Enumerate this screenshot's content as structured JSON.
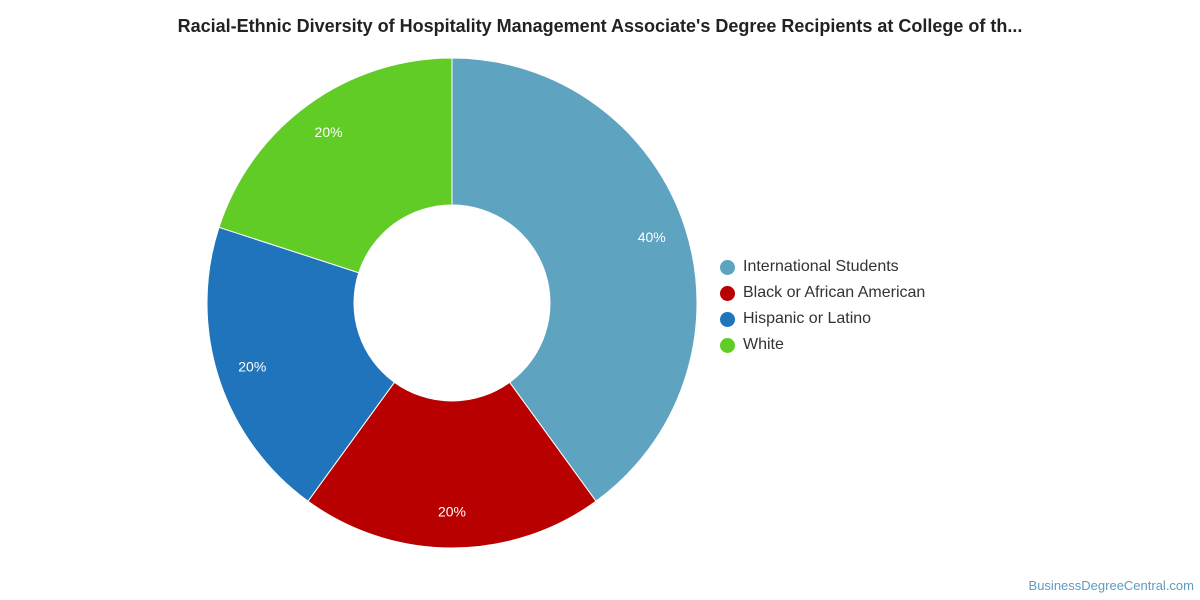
{
  "chart_data": {
    "type": "pie",
    "donut": true,
    "title": "Racial-Ethnic Diversity of Hospitality Management Associate's Degree Recipients at College of th...",
    "legend_position": "right",
    "slices": [
      {
        "label": "International Students",
        "value": 40,
        "display": "40%",
        "color": "#5ea3c0"
      },
      {
        "label": "Black or African American",
        "value": 20,
        "display": "20%",
        "color": "#b80000"
      },
      {
        "label": "Hispanic or Latino",
        "value": 20,
        "display": "20%",
        "color": "#1f74bb"
      },
      {
        "label": "White",
        "value": 20,
        "display": "20%",
        "color": "#62cc26"
      }
    ]
  },
  "watermark": "BusinessDegreeCentral.com"
}
